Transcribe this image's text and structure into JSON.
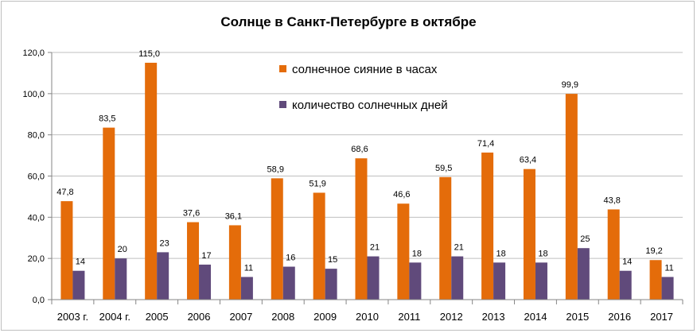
{
  "chart_data": {
    "type": "bar",
    "title": "Солнце в Санкт-Петербурге  в  октябре",
    "categories": [
      "2003 г.",
      "2004 г.",
      "2005",
      "2006",
      "2007",
      "2008",
      "2009",
      "2010",
      "2011",
      "2012",
      "2013",
      "2014",
      "2015",
      "2016",
      "2017"
    ],
    "series": [
      {
        "name": "солнечное сияние в часах",
        "color": "#e46c0a",
        "values": [
          47.8,
          83.5,
          115.0,
          37.6,
          36.1,
          58.9,
          51.9,
          68.6,
          46.6,
          59.5,
          71.4,
          63.4,
          99.9,
          43.8,
          19.2
        ],
        "labels": [
          "47,8",
          "83,5",
          "115,0",
          "37,6",
          "36,1",
          "58,9",
          "51,9",
          "68,6",
          "46,6",
          "59,5",
          "71,4",
          "63,4",
          "99,9",
          "43,8",
          "19,2"
        ]
      },
      {
        "name": "количество солнечных дней",
        "color": "#604a7b",
        "values": [
          14,
          20,
          23,
          17,
          11,
          16,
          15,
          21,
          18,
          21,
          18,
          18,
          25,
          14,
          11
        ],
        "labels": [
          "14",
          "20",
          "23",
          "17",
          "11",
          "16",
          "15",
          "21",
          "18",
          "21",
          "18",
          "18",
          "25",
          "14",
          "11"
        ]
      }
    ],
    "ylim": [
      0,
      120
    ],
    "yticks": [
      0,
      20,
      40,
      60,
      80,
      100,
      120
    ],
    "ytick_labels": [
      "0,0",
      "20,0",
      "40,0",
      "60,0",
      "80,0",
      "100,0",
      "120,0"
    ],
    "grid": true,
    "legend": "top-center"
  }
}
